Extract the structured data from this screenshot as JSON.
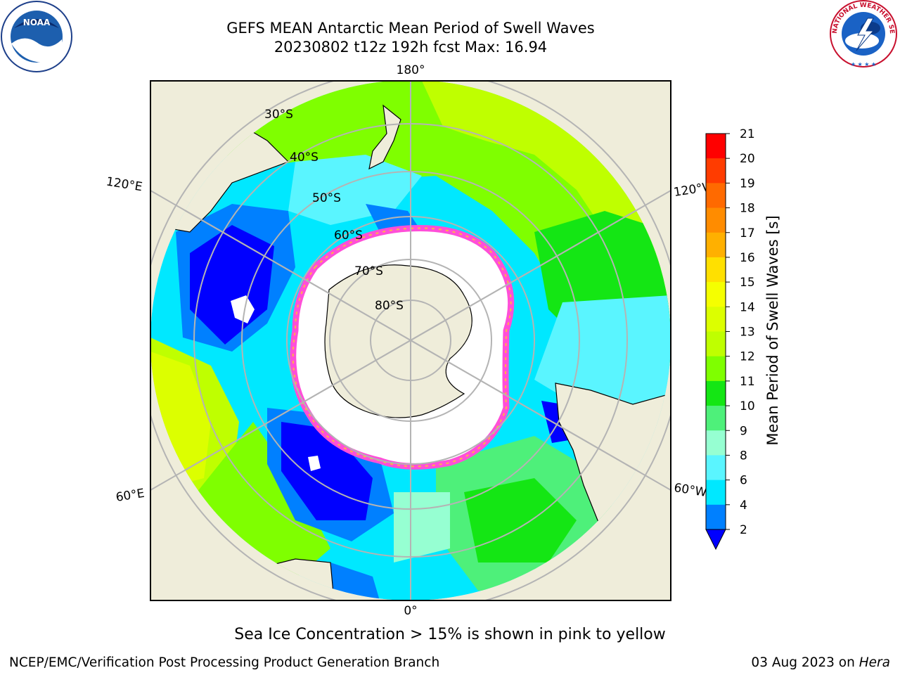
{
  "header": {
    "title_line1": "GEFS MEAN Antarctic Mean Period of Swell Waves",
    "title_line2": "20230802 t12z 192h fcst   Max: 16.94"
  },
  "map": {
    "projection": "south-polar-stereographic",
    "longitude_labels": [
      "180°",
      "120°E",
      "120°W",
      "60°E",
      "60°W",
      "0°"
    ],
    "latitude_labels": [
      "30°S",
      "40°S",
      "50°S",
      "60°S",
      "70°S",
      "80°S"
    ],
    "colors": {
      "land": "#efedda",
      "no_data": "#ffffff",
      "graticule": "#b4b4b4",
      "sea_ice_low": "#ff4fd8",
      "sea_ice_high": "#ffb347"
    }
  },
  "colorbar": {
    "label": "Mean Period of Swell Waves [s]",
    "tick_labels": [
      "21",
      "20",
      "19",
      "18",
      "17",
      "16",
      "15",
      "14",
      "13",
      "12",
      "11",
      "10",
      "9",
      "8",
      "6",
      "4",
      "2"
    ],
    "colors_top_to_bottom": [
      "#ff0000",
      "#ff3c00",
      "#ff6a00",
      "#ff8c00",
      "#ffb000",
      "#ffe000",
      "#f5ff00",
      "#dcff00",
      "#bfff00",
      "#7fff00",
      "#14e614",
      "#4ef07a",
      "#96ffd2",
      "#5af5ff",
      "#00e8ff",
      "#0080ff"
    ],
    "under_color": "#0000ff"
  },
  "footnote": "Sea Ice Concentration > 15% is shown in pink to yellow",
  "footer": {
    "left": "NCEP/EMC/Verification Post Processing Product Generation Branch",
    "right_date": "03 Aug 2023 on",
    "right_host": "Hera"
  },
  "logos": {
    "noaa_text": "NOAA",
    "nws_ring_text": "NATIONAL WEATHER SERVICE"
  }
}
